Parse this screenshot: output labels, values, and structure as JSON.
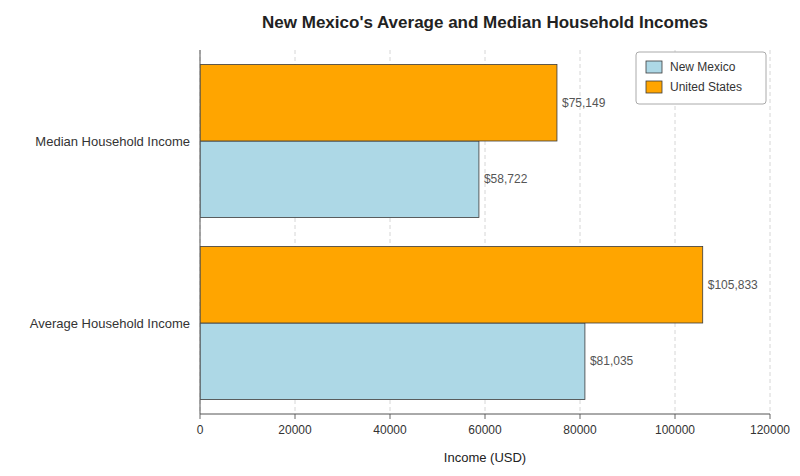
{
  "chart_data": {
    "type": "bar",
    "orientation": "horizontal",
    "title": "New Mexico's Average and Median Household Incomes",
    "x_label": "Income (USD)",
    "categories": [
      "Average Household Income",
      "Median Household Income"
    ],
    "series": [
      {
        "name": "New Mexico",
        "color": "#ADD8E6",
        "values": [
          81035,
          58722
        ],
        "value_labels": [
          "$81,035",
          "$58,722"
        ]
      },
      {
        "name": "United States",
        "color": "#FFA500",
        "values": [
          105833,
          75149
        ],
        "value_labels": [
          "$105,833",
          "$75,149"
        ]
      }
    ],
    "xlim": [
      0,
      120000
    ],
    "xticks": [
      0,
      20000,
      40000,
      60000,
      80000,
      100000,
      120000
    ],
    "grid": true,
    "legend": "upper right",
    "data_labels": true
  }
}
